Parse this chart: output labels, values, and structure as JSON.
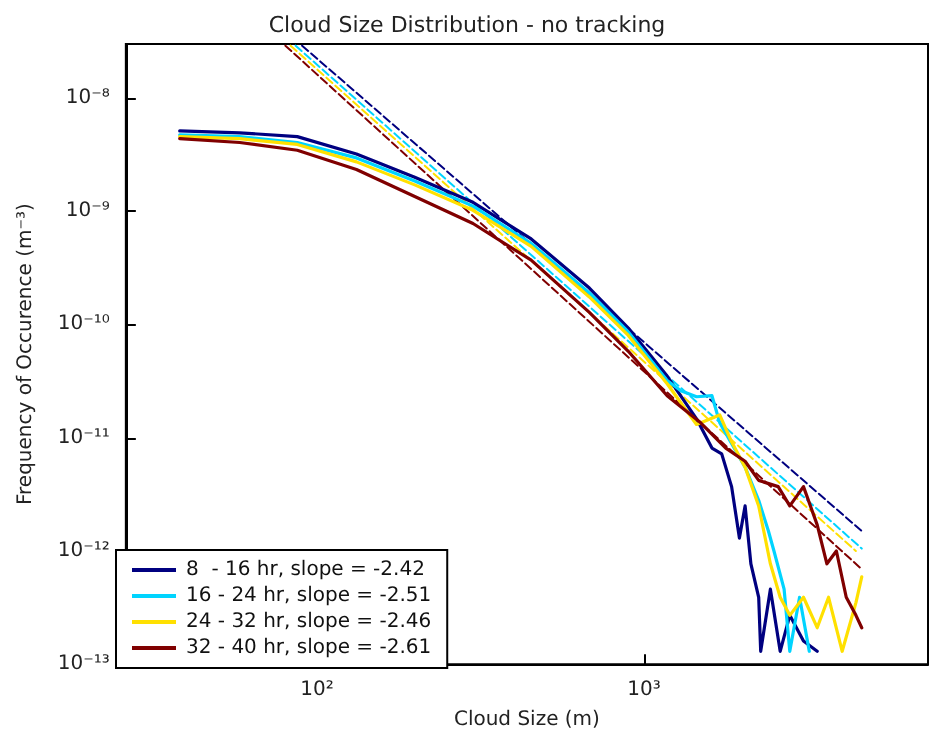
{
  "chart_data": {
    "type": "line",
    "title": "Cloud Size Distribution - no tracking",
    "xlabel": "Cloud Size (m)",
    "ylabel": "Frequency of Occurence (m⁻³)",
    "log": "xy",
    "grid": false,
    "legend": "bottom left",
    "marker": "none",
    "xlim": [
      26,
      7400
    ],
    "ylim": [
      1e-13,
      3e-08
    ],
    "xticks": [
      {
        "value": 100,
        "label": "10²"
      },
      {
        "value": 1000,
        "label": "10³"
      }
    ],
    "yticks": [
      {
        "value": 1e-13,
        "label": "10⁻¹³"
      },
      {
        "value": 1e-12,
        "label": "10⁻¹²"
      },
      {
        "value": 1e-11,
        "label": "10⁻¹¹"
      },
      {
        "value": 1e-10,
        "label": "10⁻¹⁰"
      },
      {
        "value": 1e-09,
        "label": "10⁻⁹"
      },
      {
        "value": 1e-08,
        "label": "10⁻⁸"
      }
    ],
    "series": [
      {
        "name": "8  - 16 hr, slope = -2.42",
        "color": "#000080",
        "line_style": "solid",
        "x": [
          38,
          58,
          87,
          132,
          199,
          300,
          452,
          681,
          896,
          1178,
          1449,
          1615,
          1730,
          1855,
          1960,
          2040,
          2125,
          2245,
          2277,
          2438,
          2612,
          2795,
          3078,
          3390
        ],
        "values": [
          5.13e-09,
          4.93e-09,
          4.56e-09,
          3.2e-09,
          2e-09,
          1.2e-09,
          5.7e-10,
          2.1e-10,
          9.3e-11,
          3.5e-11,
          1.47e-11,
          8.1e-12,
          7.2e-12,
          3.7e-12,
          1.3e-12,
          2.5e-12,
          7.7e-13,
          3.9e-13,
          1.3e-13,
          4.6e-13,
          1.3e-13,
          2.7e-13,
          1.6e-13,
          1.3e-13
        ]
      },
      {
        "name": "16 - 24 hr, slope = -2.51",
        "color": "#00d4ff",
        "line_style": "solid",
        "x": [
          38,
          58,
          87,
          132,
          199,
          300,
          452,
          681,
          896,
          1178,
          1297,
          1449,
          1615,
          1706,
          2040,
          2245,
          2404,
          2500,
          2685,
          2795,
          2994,
          3206
        ],
        "values": [
          4.74e-09,
          4.56e-09,
          4.05e-09,
          2.96e-09,
          1.85e-09,
          1.11e-09,
          5.2e-10,
          1.9e-10,
          8.6e-11,
          3.2e-11,
          2.6e-11,
          2.3e-11,
          2.35e-11,
          1.36e-11,
          5.5e-12,
          2.8e-12,
          1.5e-12,
          1e-12,
          4.6e-13,
          1.3e-13,
          3.9e-13,
          1.3e-13
        ]
      },
      {
        "name": "24 - 32 hr, slope = -2.46",
        "color": "#ffe000",
        "line_style": "solid",
        "x": [
          38,
          58,
          87,
          132,
          199,
          300,
          452,
          681,
          896,
          1178,
          1449,
          1706,
          1855,
          2040,
          2245,
          2438,
          2612,
          2795,
          3078,
          3390,
          3673,
          4043,
          4454,
          4640
        ],
        "values": [
          4.56e-09,
          4.38e-09,
          3.89e-09,
          2.73e-09,
          1.71e-09,
          1.02e-09,
          4.9e-10,
          1.75e-10,
          8e-11,
          3e-11,
          1.31e-11,
          1.59e-11,
          9.2e-12,
          5.5e-12,
          2.5e-12,
          7.7e-13,
          3.9e-13,
          2.7e-13,
          3.9e-13,
          2.1e-13,
          3.9e-13,
          1.3e-13,
          3.5e-13,
          5.9e-13
        ]
      },
      {
        "name": "32 - 40 hr, slope = -2.61",
        "color": "#800000",
        "line_style": "solid",
        "x": [
          38,
          58,
          87,
          132,
          199,
          300,
          452,
          681,
          896,
          1178,
          1489,
          1780,
          2040,
          2245,
          2575,
          2795,
          3078,
          3390,
          3630,
          3881,
          4160,
          4454,
          4640
        ],
        "values": [
          4.38e-09,
          4.05e-09,
          3.46e-09,
          2.34e-09,
          1.35e-09,
          7.8e-10,
          3.7e-10,
          1.28e-10,
          5.8e-11,
          2.35e-11,
          1.36e-11,
          8.1e-12,
          6.2e-12,
          4.2e-12,
          3.7e-12,
          2.5e-12,
          3.7e-12,
          1.7e-12,
          7.7e-13,
          1e-12,
          3.9e-13,
          2.7e-13,
          2.1e-13
        ]
      },
      {
        "color": "#000080",
        "line_style": "dashed",
        "x": [
          90,
          4640
        ],
        "values": [
          2.9e-08,
          1.5e-12
        ]
      },
      {
        "color": "#00d4ff",
        "line_style": "dashed",
        "x": [
          86,
          4640
        ],
        "values": [
          2.9e-08,
          1.05e-12
        ]
      },
      {
        "color": "#ffe000",
        "line_style": "dashed",
        "x": [
          83,
          4450
        ],
        "values": [
          2.9e-08,
          1e-12
        ]
      },
      {
        "color": "#800000",
        "line_style": "dashed",
        "x": [
          80,
          4640
        ],
        "values": [
          2.9e-08,
          6.9e-13
        ]
      }
    ]
  }
}
